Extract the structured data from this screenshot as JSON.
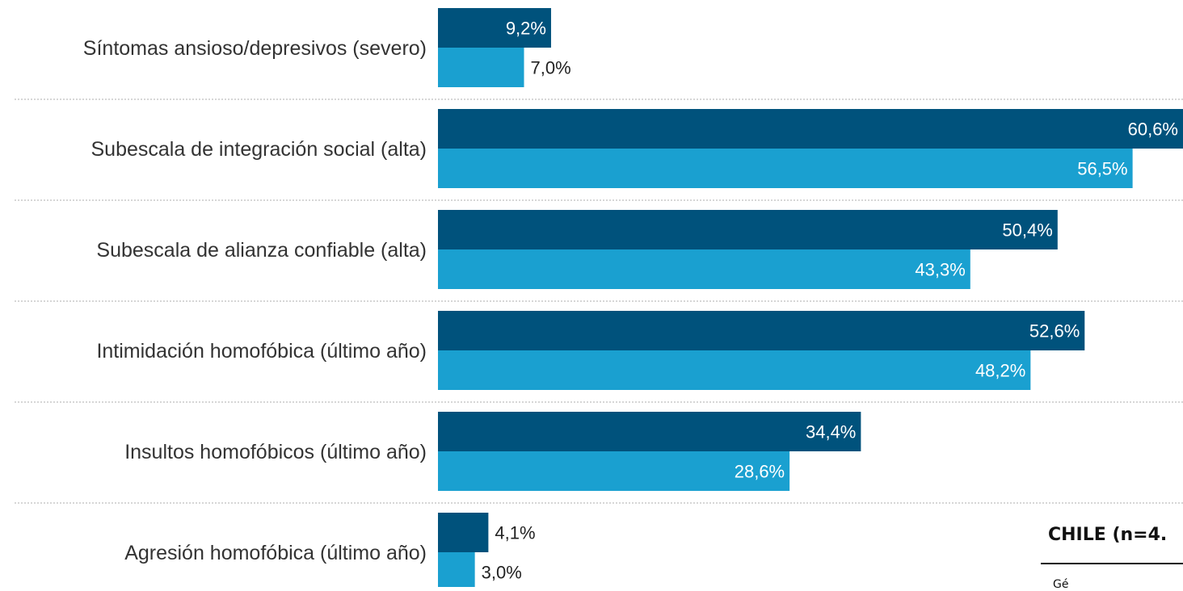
{
  "chart_data": {
    "type": "bar",
    "orientation": "horizontal",
    "categories": [
      "Síntomas ansioso/depresivos (severo)",
      "Subescala de integración social (alta)",
      "Subescala de alianza confiable (alta)",
      "Intimidación homofóbica (último año)",
      "Insultos homofóbicos (último año)",
      "Agresión homofóbica (último año)"
    ],
    "series": [
      {
        "color": "#00527c",
        "values": [
          9.2,
          60.6,
          50.4,
          52.6,
          34.4,
          4.1
        ],
        "labels": [
          "9,2%",
          "60,6%",
          "50,4%",
          "52,6%",
          "34,4%",
          "4,1%"
        ]
      },
      {
        "color": "#1aa0d0",
        "values": [
          7.0,
          56.5,
          43.3,
          48.2,
          28.6,
          3.0
        ],
        "labels": [
          "7,0%",
          "56,5%",
          "43,3%",
          "48,2%",
          "28,6%",
          "3,0%"
        ]
      }
    ],
    "xlim": [
      0,
      60.6
    ],
    "grid": false
  },
  "side_panel": {
    "title": "CHILE (n=4.",
    "text": "Gé"
  },
  "colors": {
    "separator": "#c8c8c8",
    "label_inside": "#ffffff",
    "label_outside": "#222222"
  }
}
